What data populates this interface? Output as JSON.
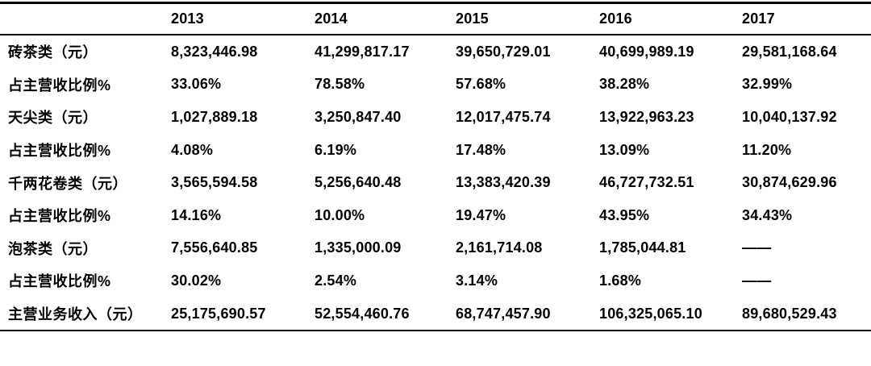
{
  "table": {
    "corner": "",
    "columns": [
      "2013",
      "2014",
      "2015",
      "2016",
      "2017"
    ],
    "rows": [
      {
        "label": "砖茶类（元）",
        "values": [
          "8,323,446.98",
          "41,299,817.17",
          "39,650,729.01",
          "40,699,989.19",
          "29,581,168.64"
        ]
      },
      {
        "label": "占主营收比例%",
        "values": [
          "33.06%",
          "78.58%",
          "57.68%",
          "38.28%",
          "32.99%"
        ]
      },
      {
        "label": "天尖类（元）",
        "values": [
          "1,027,889.18",
          "3,250,847.40",
          "12,017,475.74",
          "13,922,963.23",
          "10,040,137.92"
        ]
      },
      {
        "label": "占主营收比例%",
        "values": [
          "4.08%",
          "6.19%",
          "17.48%",
          "13.09%",
          "11.20%"
        ]
      },
      {
        "label": "千两花卷类（元）",
        "values": [
          "3,565,594.58",
          "5,256,640.48",
          "13,383,420.39",
          "46,727,732.51",
          "30,874,629.96"
        ]
      },
      {
        "label": "占主营收比例%",
        "values": [
          "14.16%",
          "10.00%",
          "19.47%",
          "43.95%",
          "34.43%"
        ]
      },
      {
        "label": "泡茶类（元）",
        "values": [
          "7,556,640.85",
          "1,335,000.09",
          "2,161,714.08",
          "1,785,044.81",
          "——"
        ]
      },
      {
        "label": "占主营收比例%",
        "values": [
          "30.02%",
          "2.54%",
          "3.14%",
          "1.68%",
          "——"
        ]
      },
      {
        "label": "主营业务收入（元）",
        "values": [
          "25,175,690.57",
          "52,554,460.76",
          "68,747,457.90",
          "106,325,065.10",
          "89,680,529.43"
        ]
      }
    ]
  }
}
